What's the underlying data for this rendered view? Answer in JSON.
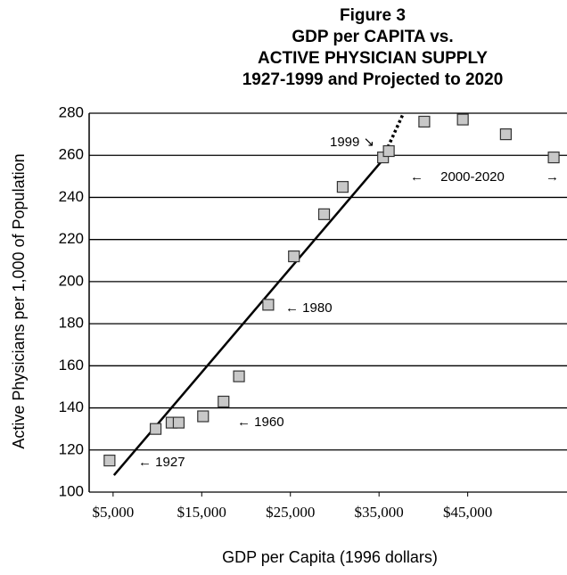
{
  "chart_data": {
    "type": "scatter",
    "title": [
      "Figure 3",
      "GDP per CAPITA vs.",
      "ACTIVE PHYSICIAN SUPPLY",
      "1927-1999 and Projected to 2020"
    ],
    "x_label": "GDP per Capita (1996 dollars)",
    "y_label": "Active Physicians per 1,000 of Population",
    "xlim": [
      2300,
      56200
    ],
    "ylim": [
      100,
      280
    ],
    "xticks": [
      {
        "value": 5000,
        "label": "$5,000"
      },
      {
        "value": 15000,
        "label": "$15,000"
      },
      {
        "value": 25000,
        "label": "$25,000"
      },
      {
        "value": 35000,
        "label": "$35,000"
      },
      {
        "value": 45000,
        "label": "$45,000"
      }
    ],
    "yticks": [
      100,
      120,
      140,
      160,
      180,
      200,
      220,
      240,
      260,
      280
    ],
    "grid": true,
    "points": {
      "color": "#c8c8c8",
      "x": [
        4600,
        9800,
        11600,
        12400,
        15150,
        17460,
        19200,
        22500,
        25400,
        28800,
        30900,
        35450,
        36100,
        40100,
        44450,
        49300,
        54700
      ],
      "y": [
        115,
        130,
        133,
        133,
        136,
        143,
        155,
        189,
        212,
        232,
        245,
        259,
        262,
        276,
        277,
        270,
        259
      ]
    },
    "trend": {
      "color": "#000000",
      "x": [
        5100,
        35250
      ],
      "y": [
        108,
        257
      ]
    },
    "projection": {
      "color": "#000000",
      "x": [
        35250,
        37750
      ],
      "y": [
        257,
        280
      ]
    },
    "annotations": [
      "1999 ↘",
      "←",
      "2000-2020",
      "→",
      "← 1980",
      "← 1960",
      "← 1927"
    ]
  }
}
